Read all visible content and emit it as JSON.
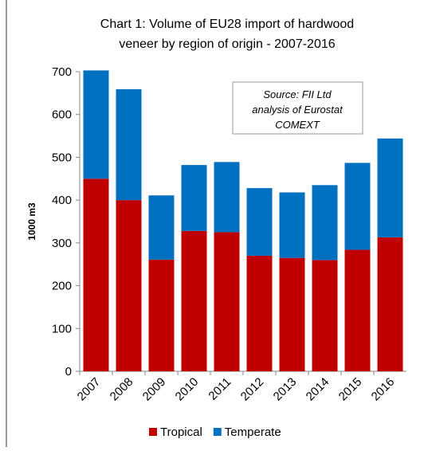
{
  "chart_data": {
    "type": "stacked_bar",
    "title": [
      "Chart 1: Volume of EU28 import of hardwood",
      "veneer by region of origin - 2007-2016"
    ],
    "y_label": "1000 m3",
    "annotation": [
      "Source: FII Ltd",
      "analysis of Eurostat",
      "COMEXT"
    ],
    "categories": [
      "2007",
      "2008",
      "2009",
      "2010",
      "2011",
      "2012",
      "2013",
      "2014",
      "2015",
      "2016"
    ],
    "series": [
      {
        "name": "Tropical",
        "color": "#c00000",
        "values": [
          450,
          400,
          261,
          328,
          325,
          270,
          265,
          260,
          284,
          313
        ]
      },
      {
        "name": "Temperate",
        "color": "#0070c0",
        "values": [
          253,
          259,
          150,
          154,
          164,
          158,
          153,
          175,
          203,
          231
        ]
      }
    ],
    "ylim": [
      0,
      700
    ],
    "yticks": [
      0,
      100,
      200,
      300,
      400,
      500,
      600,
      700
    ],
    "legend": "bottom"
  }
}
